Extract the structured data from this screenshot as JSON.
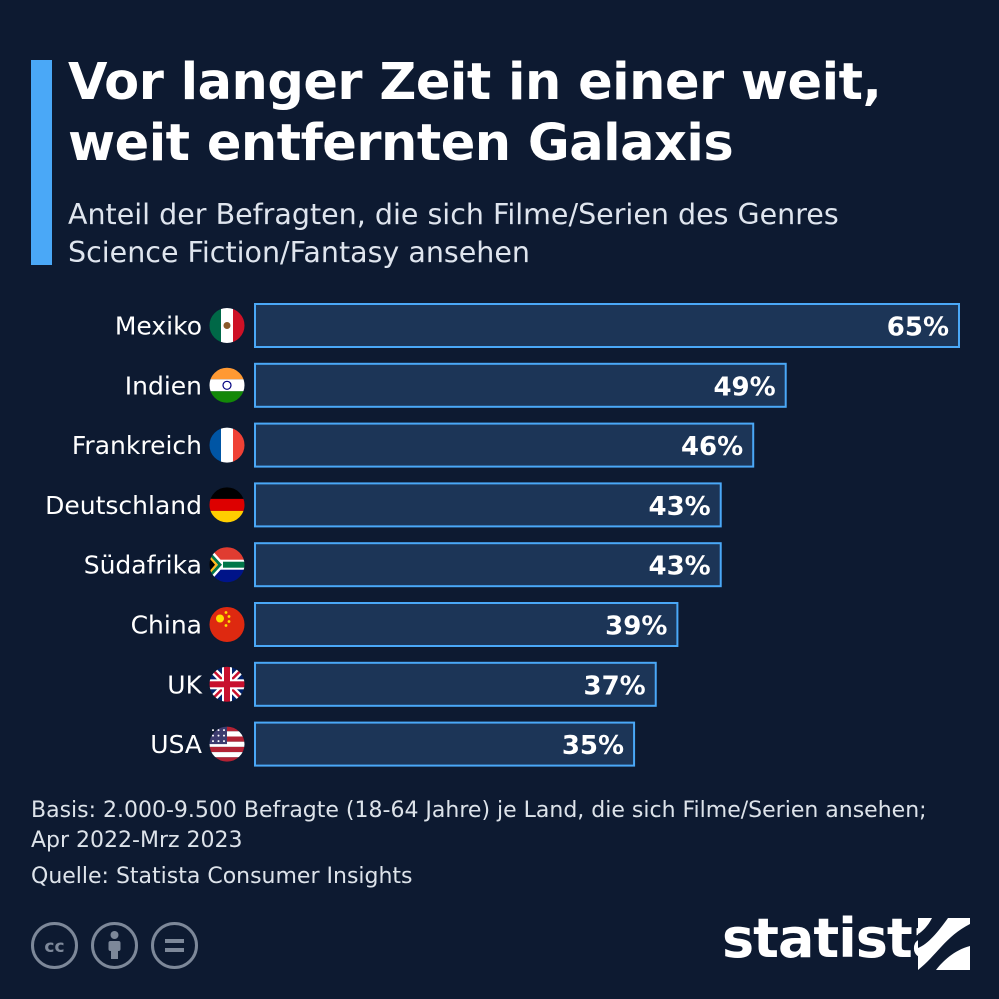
{
  "header": {
    "title_line1": "Vor langer Zeit in einer weit,",
    "title_line2": "weit entfernten Galaxis",
    "subtitle_line1": "Anteil der Befragten, die sich Filme/Serien des Genres",
    "subtitle_line2": "Science Fiction/Fantasy ansehen"
  },
  "chart_data": {
    "type": "bar",
    "orientation": "horizontal",
    "title": "Vor langer Zeit in einer weit, weit entfernten Galaxis",
    "subtitle": "Anteil der Befragten, die sich Filme/Serien des Genres Science Fiction/Fantasy ansehen",
    "unit": "%",
    "categories": [
      "Mexiko",
      "Indien",
      "Frankreich",
      "Deutschland",
      "Südafrika",
      "China",
      "UK",
      "USA"
    ],
    "values": [
      65,
      49,
      46,
      43,
      43,
      39,
      37,
      35
    ],
    "value_labels": [
      "65%",
      "49%",
      "46%",
      "43%",
      "43%",
      "39%",
      "37%",
      "35%"
    ],
    "flags": [
      "mexico-flag-icon",
      "india-flag-icon",
      "france-flag-icon",
      "germany-flag-icon",
      "south-africa-flag-icon",
      "china-flag-icon",
      "uk-flag-icon",
      "usa-flag-icon"
    ],
    "xlim": [
      0,
      65
    ],
    "grid": false,
    "legend": "none",
    "colors": {
      "bar_fill": "#1c3557",
      "bar_border": "#4aa8f7",
      "background": "#0d1a31",
      "accent": "#4aa8f7"
    }
  },
  "footer": {
    "basis_line1": "Basis: 2.000-9.500 Befragte (18-64 Jahre) je Land, die sich Filme/Serien ansehen;",
    "basis_line2": "Apr 2022-Mrz 2023",
    "source": "Quelle: Statista Consumer Insights",
    "license_icons": [
      "cc-icon",
      "attribution-icon",
      "no-derivatives-icon"
    ],
    "brand": "statista",
    "decoration_icon": "spaceship-icon"
  }
}
